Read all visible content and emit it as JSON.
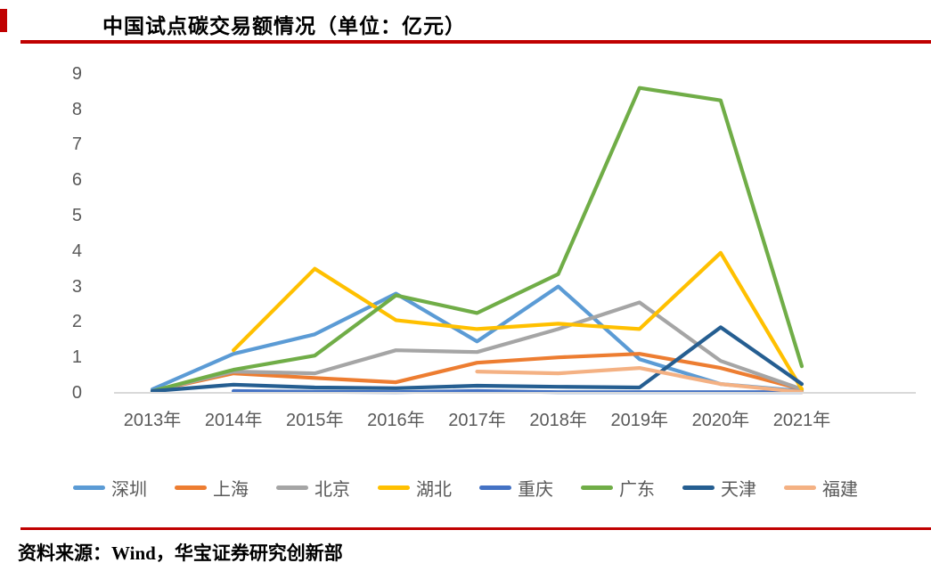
{
  "header": {
    "accent_color": "#C00000"
  },
  "chart_data": {
    "type": "line",
    "title": "中国试点碳交易额情况（单位：亿元）",
    "categories": [
      "2013年",
      "2014年",
      "2015年",
      "2016年",
      "2017年",
      "2018年",
      "2019年",
      "2020年",
      "2021年"
    ],
    "series": [
      {
        "key": "shenzhen",
        "name": "深圳",
        "color": "#5B9BD5",
        "values": [
          0.1,
          1.1,
          1.65,
          2.8,
          1.45,
          3.0,
          0.95,
          0.25,
          0.05
        ]
      },
      {
        "key": "shanghai",
        "name": "上海",
        "color": "#ED7D31",
        "values": [
          0.05,
          0.55,
          0.42,
          0.3,
          0.85,
          1.0,
          1.1,
          0.7,
          0.1
        ]
      },
      {
        "key": "beijing",
        "name": "北京",
        "color": "#A5A5A5",
        "values": [
          0.05,
          0.6,
          0.55,
          1.2,
          1.15,
          1.8,
          2.55,
          0.9,
          0.1
        ]
      },
      {
        "key": "hubei",
        "name": "湖北",
        "color": "#FFC000",
        "values": [
          null,
          1.2,
          3.5,
          2.05,
          1.8,
          1.95,
          1.8,
          3.95,
          0.1
        ]
      },
      {
        "key": "chongqing",
        "name": "重庆",
        "color": "#4472C4",
        "values": [
          null,
          0.05,
          0.03,
          0.02,
          0.05,
          0.02,
          0.02,
          0.02,
          0.02
        ]
      },
      {
        "key": "guangdong",
        "name": "广东",
        "color": "#70AD47",
        "values": [
          0.05,
          0.65,
          1.05,
          2.75,
          2.25,
          3.35,
          8.6,
          8.25,
          0.75
        ]
      },
      {
        "key": "tianjin",
        "name": "天津",
        "color": "#255E91",
        "values": [
          0.05,
          0.23,
          0.15,
          0.13,
          0.2,
          0.17,
          0.15,
          1.85,
          0.25
        ]
      },
      {
        "key": "fujian",
        "name": "福建",
        "color": "#F4B183",
        "values": [
          null,
          null,
          null,
          null,
          0.6,
          0.55,
          0.7,
          0.25,
          0.02
        ]
      }
    ],
    "ylabel": "",
    "xlabel": "",
    "ylim": [
      0,
      9
    ],
    "yticks": [
      0,
      1,
      2,
      3,
      4,
      5,
      6,
      7,
      8,
      9
    ],
    "grid": false,
    "legend_position": "bottom",
    "axis_color": "#D9D9D9",
    "tick_label_color": "#595959"
  },
  "footer": {
    "source_label": "资料来源：Wind，华宝证券研究创新部"
  }
}
